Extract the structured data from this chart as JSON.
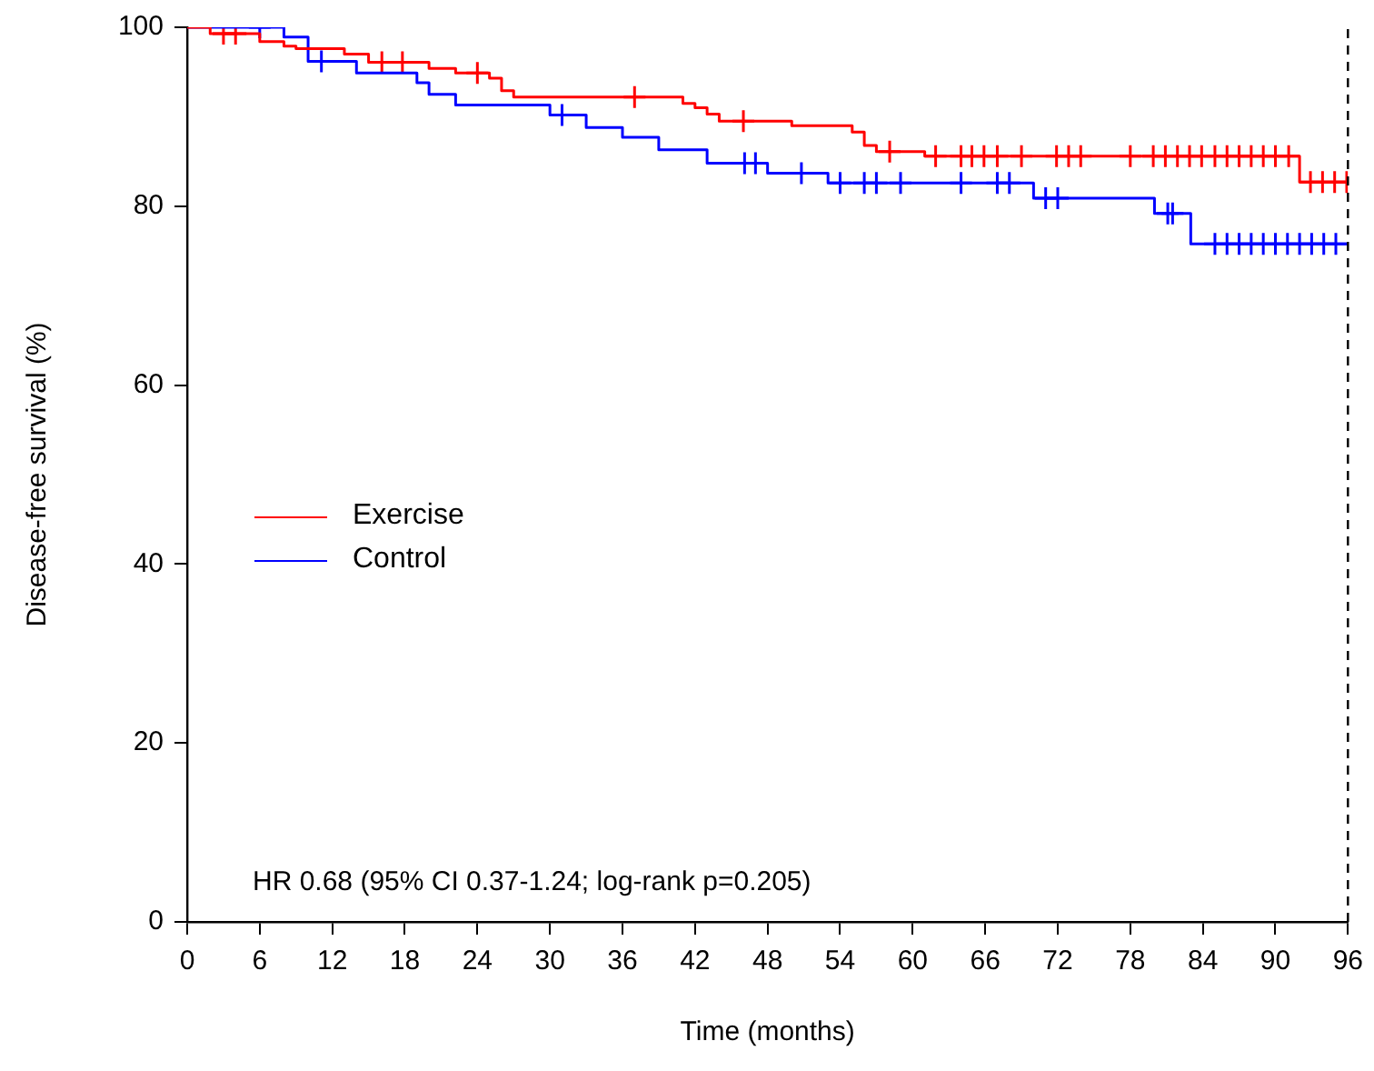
{
  "chart_data": {
    "type": "step",
    "xlabel": "Time (months)",
    "ylabel": "Disease-free survival (%)",
    "xlim": [
      0,
      96
    ],
    "xticks": [
      0,
      6,
      12,
      18,
      24,
      30,
      36,
      42,
      48,
      54,
      60,
      66,
      72,
      78,
      84,
      90,
      96
    ],
    "ylim": [
      0,
      100
    ],
    "yticks": [
      0,
      20,
      40,
      60,
      80,
      100
    ],
    "grid": false,
    "legend": "left",
    "annotations": [
      "HR 0.68 (95% CI 0.37-1.24; log-rank p=0.205)"
    ],
    "ref_lines": [
      {
        "axis": "x",
        "value": 96,
        "color": "#000000",
        "line_style": "dashed"
      }
    ],
    "series": [
      {
        "name": "Exercise",
        "color": "#ff0000",
        "x": [
          0,
          1.9,
          6,
          8,
          9,
          13,
          15,
          20,
          22.2,
          25,
          26,
          27,
          41,
          42,
          43,
          44,
          50,
          55,
          56,
          57,
          61,
          92,
          96
        ],
        "values": [
          100,
          99.3,
          98.4,
          97.9,
          97.6,
          97.0,
          96.1,
          95.4,
          94.9,
          94.3,
          92.9,
          92.2,
          91.5,
          91.0,
          90.3,
          89.5,
          89.0,
          88.3,
          86.8,
          86.1,
          85.6,
          82.7,
          82.7
        ]
      },
      {
        "name": "Control",
        "color": "#0000ff",
        "x": [
          0,
          8,
          10,
          14,
          19,
          20,
          22.2,
          30,
          33,
          36,
          39,
          43,
          48,
          53,
          70,
          80,
          83,
          96
        ],
        "values": [
          100,
          98.9,
          96.2,
          94.9,
          93.8,
          92.5,
          91.3,
          90.2,
          88.8,
          87.7,
          86.3,
          84.8,
          83.7,
          82.6,
          80.9,
          79.2,
          75.8,
          75.8
        ]
      },
      {
        "type": "scatter",
        "marker": "cross",
        "color": "#ff0000",
        "x": [
          3,
          4,
          16.1,
          17.8,
          24,
          37,
          46,
          58.1,
          61.9,
          64,
          64.9,
          65.9,
          67,
          69,
          71.9,
          72.9,
          73.9,
          78,
          79.9,
          80.9,
          81.9,
          82.9,
          83.9,
          85,
          86,
          87,
          88,
          89,
          90,
          91.1,
          92.9,
          93.9,
          94.9,
          95.9
        ],
        "values": [
          99.3,
          99.3,
          96.1,
          96.1,
          94.9,
          92.2,
          89.5,
          86.1,
          85.6,
          85.6,
          85.6,
          85.6,
          85.6,
          85.6,
          85.6,
          85.6,
          85.6,
          85.6,
          85.6,
          85.6,
          85.6,
          85.6,
          85.6,
          85.6,
          85.6,
          85.6,
          85.6,
          85.6,
          85.6,
          85.6,
          82.7,
          82.7,
          82.7,
          82.7
        ]
      },
      {
        "type": "scatter",
        "marker": "cross",
        "color": "#0000ff",
        "x": [
          6,
          11.1,
          31,
          46.1,
          47,
          50.8,
          54,
          56,
          57,
          59,
          64,
          67,
          68,
          71,
          72,
          81.1,
          81.5,
          85,
          86,
          87,
          88,
          89,
          90,
          91,
          92,
          93,
          94,
          95
        ],
        "values": [
          100,
          96.2,
          90.2,
          84.8,
          84.8,
          83.7,
          82.6,
          82.6,
          82.6,
          82.6,
          82.6,
          82.6,
          82.6,
          80.9,
          80.9,
          79.2,
          79.2,
          75.8,
          75.8,
          75.8,
          75.8,
          75.8,
          75.8,
          75.8,
          75.8,
          75.8,
          75.8,
          75.8
        ]
      }
    ]
  }
}
